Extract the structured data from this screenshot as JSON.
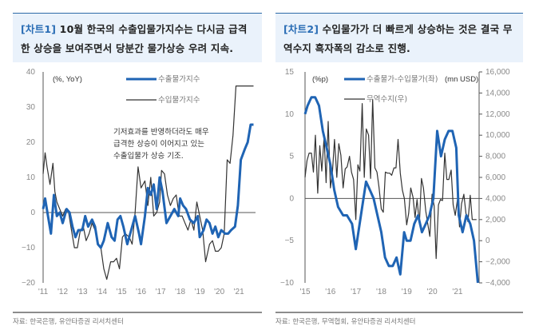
{
  "headers": [
    {
      "tag": "[차트1]",
      "text": " 10월 한국의 수출입물가지수는 다시금 급격한 상승을 보여주면서 당분간 물가상승 우려 지속."
    },
    {
      "tag": "[차트2]",
      "text": " 수입물가가 더 빠르게 상승하는 것은 결국 무역수지 흑자폭의 감소로 진행."
    }
  ],
  "sources": [
    "자료: 한국은행, 유안타증권 리서치센터",
    "자료: 한국은행, 무역협회, 유안타증권 리서치센터"
  ],
  "colors": {
    "blue": "#1f64b4",
    "black": "#333333",
    "axis": "#555555",
    "header_bg": "#eaf2fb",
    "tag": "#2a6db5"
  },
  "chart_data": [
    {
      "type": "line",
      "unit": "(%, YoY)",
      "annotation": [
        "기저효과를 반영하더라도 매우",
        "급격한 상승이 이어지고 있는",
        "수출입물가 상승 기조."
      ],
      "ylim": [
        -20,
        40
      ],
      "yticks": [
        "40",
        "30",
        "20",
        "10",
        "0",
        "−10",
        "−20"
      ],
      "ytick_values": [
        40,
        30,
        20,
        10,
        0,
        -10,
        -20
      ],
      "xticks": [
        "'11",
        "'12",
        "'13",
        "'14",
        "'15",
        "'16",
        "'17",
        "'18",
        "'19",
        "'20",
        "'21"
      ],
      "xlim": [
        2011,
        2021.85
      ],
      "series": [
        {
          "name": "수출물가지수",
          "color": "#1f64b4",
          "x": [
            2011.0,
            2011.1,
            2011.25,
            2011.4,
            2011.55,
            2011.7,
            2011.85,
            2012.0,
            2012.1,
            2012.2,
            2012.35,
            2012.5,
            2012.65,
            2012.8,
            2013.0,
            2013.15,
            2013.3,
            2013.5,
            2013.65,
            2013.8,
            2013.95,
            2014.1,
            2014.3,
            2014.5,
            2014.65,
            2014.8,
            2014.95,
            2015.1,
            2015.3,
            2015.5,
            2015.7,
            2015.9,
            2016.0,
            2016.2,
            2016.35,
            2016.5,
            2016.65,
            2016.8,
            2016.95,
            2017.1,
            2017.3,
            2017.5,
            2017.7,
            2017.9,
            2018.0,
            2018.15,
            2018.3,
            2018.5,
            2018.7,
            2018.9,
            2019.0,
            2019.2,
            2019.35,
            2019.5,
            2019.65,
            2019.8,
            2019.95,
            2020.1,
            2020.3,
            2020.45,
            2020.6,
            2020.8,
            2020.95,
            2021.1,
            2021.3,
            2021.45,
            2021.6,
            2021.75
          ],
          "values": [
            1,
            4,
            -1,
            -6,
            5,
            -1,
            0,
            -3,
            -1,
            1,
            0,
            -4,
            -7,
            -5,
            -5,
            -1,
            -4,
            -2,
            -4,
            -9,
            -10,
            -8,
            -3,
            -7,
            -8,
            -2,
            -1,
            -4,
            -9,
            -5,
            -1,
            -6,
            -9,
            -1,
            7,
            5,
            8,
            1,
            10,
            6,
            -3,
            -1,
            1,
            -1,
            4,
            2,
            1,
            -2,
            -3,
            -1,
            -7,
            -5,
            -2,
            -3,
            -6,
            -4,
            -7,
            -5,
            -6,
            -6,
            -5,
            -4,
            2,
            15,
            18,
            20,
            25,
            25
          ],
          "width": 3
        },
        {
          "name": "수입물가지수",
          "color": "#333333",
          "x": [
            2011.0,
            2011.1,
            2011.2,
            2011.35,
            2011.5,
            2011.6,
            2011.7,
            2011.85,
            2012.0,
            2012.15,
            2012.3,
            2012.45,
            2012.6,
            2012.75,
            2012.9,
            2013.05,
            2013.2,
            2013.35,
            2013.5,
            2013.65,
            2013.8,
            2013.95,
            2014.1,
            2014.25,
            2014.45,
            2014.6,
            2014.75,
            2014.9,
            2015.05,
            2015.2,
            2015.4,
            2015.55,
            2015.7,
            2015.85,
            2016.0,
            2016.2,
            2016.35,
            2016.5,
            2016.65,
            2016.8,
            2016.95,
            2017.05,
            2017.2,
            2017.35,
            2017.5,
            2017.65,
            2017.8,
            2017.95,
            2018.1,
            2018.25,
            2018.4,
            2018.55,
            2018.7,
            2018.85,
            2019.0,
            2019.15,
            2019.3,
            2019.5,
            2019.65,
            2019.8,
            2019.95,
            2020.1,
            2020.25,
            2020.4,
            2020.55,
            2020.7,
            2020.85,
            2021.0,
            2021.15,
            2021.3,
            2021.45,
            2021.6,
            2021.75
          ],
          "values": [
            11,
            17,
            13,
            8,
            14,
            6,
            3,
            1,
            -1,
            1,
            0,
            -5,
            -10,
            -10,
            -5,
            -4,
            -8,
            -6,
            -3,
            -5,
            -9,
            -10,
            -16,
            -19,
            -14,
            -14,
            -13,
            -16,
            -7,
            -6,
            -7,
            -9,
            0,
            13,
            7,
            9,
            2,
            10,
            -1,
            0,
            3,
            12,
            11,
            5,
            2,
            4,
            5,
            -1,
            -1,
            -3,
            -5,
            -2,
            -5,
            3,
            -1,
            -5,
            -14,
            -9,
            -8,
            -11,
            -11,
            -10,
            -6,
            15,
            14,
            22,
            36,
            36,
            36,
            36,
            36,
            36,
            36
          ],
          "width": 1.2
        }
      ]
    },
    {
      "type": "line",
      "unit_left": "(%p)",
      "unit_right": "(mn USD)",
      "ylim_left": [
        -10,
        15
      ],
      "ylim_right": [
        -4000,
        16000
      ],
      "yticks_left": [
        "15",
        "10",
        "5",
        "0",
        "−5",
        "−10"
      ],
      "ytick_values_left": [
        15,
        10,
        5,
        0,
        -5,
        -10
      ],
      "yticks_right": [
        "16,000",
        "14,000",
        "12,000",
        "10,000",
        "8,000",
        "6,000",
        "4,000",
        "2,000",
        "0",
        "−2,000",
        "−4,000"
      ],
      "ytick_values_right": [
        16000,
        14000,
        12000,
        10000,
        8000,
        6000,
        4000,
        2000,
        0,
        -2000,
        -4000
      ],
      "xticks": [
        "'15",
        "'16",
        "'17",
        "'18",
        "'19",
        "'20",
        "'21"
      ],
      "xlim": [
        2015,
        2021.85
      ],
      "series": [
        {
          "name": "수출물가-수입물가(좌)",
          "axis": "left",
          "color": "#1f64b4",
          "x": [
            2015.0,
            2015.1,
            2015.25,
            2015.4,
            2015.55,
            2015.7,
            2015.85,
            2016.0,
            2016.15,
            2016.3,
            2016.5,
            2016.65,
            2016.85,
            2017.0,
            2017.2,
            2017.4,
            2017.55,
            2017.7,
            2017.85,
            2018.0,
            2018.15,
            2018.3,
            2018.45,
            2018.6,
            2018.75,
            2018.9,
            2019.0,
            2019.15,
            2019.3,
            2019.45,
            2019.6,
            2019.75,
            2019.9,
            2020.05,
            2020.2,
            2020.35,
            2020.5,
            2020.65,
            2020.8,
            2020.95,
            2021.05,
            2021.2,
            2021.35,
            2021.5,
            2021.65,
            2021.8
          ],
          "values": [
            10,
            11,
            12,
            12,
            11,
            8,
            6,
            4,
            1,
            -1,
            -2,
            -2,
            -3,
            -6,
            -2,
            2,
            1,
            0,
            -2,
            -4,
            -7,
            -8,
            -8,
            -7,
            -9,
            -4,
            -5,
            -5,
            -3,
            -2,
            -4,
            -3,
            -2,
            0,
            8,
            5,
            7,
            8,
            8,
            6,
            -2,
            -4,
            -2,
            -3,
            -5,
            -10
          ],
          "width": 3
        },
        {
          "name": "무역수지(우)",
          "axis": "right",
          "color": "#333333",
          "x": [
            2015.0,
            2015.08,
            2015.16,
            2015.25,
            2015.33,
            2015.41,
            2015.5,
            2015.58,
            2015.66,
            2015.75,
            2015.83,
            2015.91,
            2016.0,
            2016.08,
            2016.16,
            2016.25,
            2016.33,
            2016.41,
            2016.5,
            2016.58,
            2016.66,
            2016.75,
            2016.83,
            2016.91,
            2017.0,
            2017.08,
            2017.16,
            2017.25,
            2017.33,
            2017.41,
            2017.5,
            2017.58,
            2017.66,
            2017.75,
            2017.83,
            2017.91,
            2018.0,
            2018.08,
            2018.16,
            2018.25,
            2018.33,
            2018.41,
            2018.5,
            2018.58,
            2018.66,
            2018.75,
            2018.83,
            2018.91,
            2019.0,
            2019.08,
            2019.16,
            2019.25,
            2019.33,
            2019.41,
            2019.5,
            2019.58,
            2019.66,
            2019.75,
            2019.83,
            2019.91,
            2020.0,
            2020.08,
            2020.16,
            2020.25,
            2020.33,
            2020.41,
            2020.5,
            2020.58,
            2020.66,
            2020.75,
            2020.83,
            2020.91,
            2021.0,
            2021.08,
            2021.16,
            2021.25,
            2021.33,
            2021.41,
            2021.5,
            2021.58,
            2021.66,
            2021.75
          ],
          "values": [
            6000,
            7600,
            8300,
            8300,
            6500,
            10000,
            4500,
            9000,
            6600,
            9800,
            5500,
            11300,
            5000,
            6600,
            9600,
            6000,
            9200,
            8100,
            5000,
            6800,
            7000,
            8000,
            6500,
            5800,
            2000,
            7200,
            6600,
            13000,
            6000,
            10600,
            10000,
            5900,
            13400,
            6900,
            6500,
            5100,
            3000,
            2700,
            6500,
            6400,
            6400,
            6200,
            6900,
            6900,
            9600,
            6400,
            4800,
            4000,
            1500,
            2600,
            5000,
            4100,
            2200,
            3900,
            1600,
            5900,
            5000,
            2800,
            1600,
            400,
            4400,
            3300,
            -1700,
            3400,
            3900,
            3800,
            8300,
            5800,
            5800,
            6700,
            3400,
            2400,
            3900,
            1300,
            3500,
            4400,
            2600,
            1800,
            4300,
            2000,
            2000,
            2000
          ],
          "width": 1.2
        }
      ]
    }
  ]
}
